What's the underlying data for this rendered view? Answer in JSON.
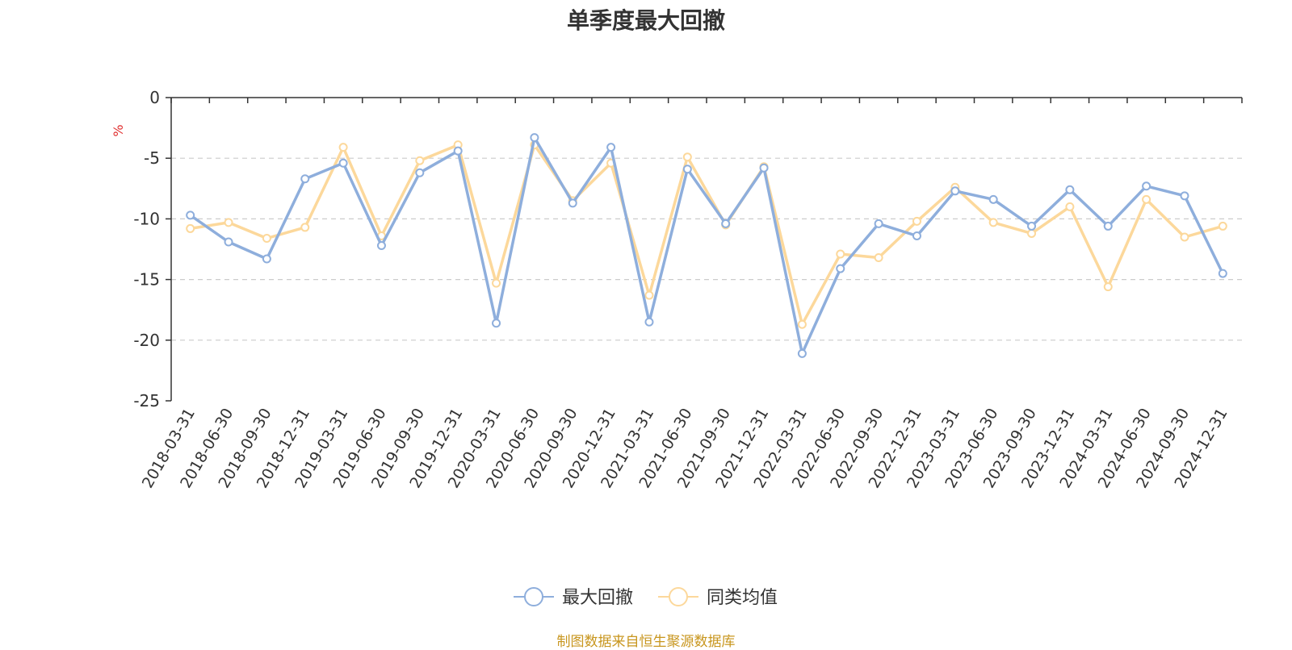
{
  "chart_data": {
    "type": "line",
    "title": "单季度最大回撤",
    "ylabel": "%",
    "ylim": [
      -25,
      0
    ],
    "yticks": [
      0,
      -5,
      -10,
      -15,
      -20,
      -25
    ],
    "grid": true,
    "legend_position": "bottom-center",
    "categories": [
      "2018-03-31",
      "2018-06-30",
      "2018-09-30",
      "2018-12-31",
      "2019-03-31",
      "2019-06-30",
      "2019-09-30",
      "2019-12-31",
      "2020-03-31",
      "2020-06-30",
      "2020-09-30",
      "2020-12-31",
      "2021-03-31",
      "2021-06-30",
      "2021-09-30",
      "2021-12-31",
      "2022-03-31",
      "2022-06-30",
      "2022-09-30",
      "2022-12-31",
      "2023-03-31",
      "2023-06-30",
      "2023-09-30",
      "2023-12-31",
      "2024-03-31",
      "2024-06-30",
      "2024-09-30",
      "2024-12-31"
    ],
    "series": [
      {
        "name": "最大回撤",
        "color": "#8EAEDC",
        "values": [
          -9.7,
          -11.9,
          -13.3,
          -6.7,
          -5.4,
          -12.2,
          -6.2,
          -4.4,
          -18.6,
          -3.3,
          -8.7,
          -4.1,
          -18.5,
          -5.9,
          -10.4,
          -5.8,
          -21.1,
          -14.1,
          -10.4,
          -11.4,
          -7.7,
          -8.4,
          -10.6,
          -7.6,
          -10.6,
          -7.3,
          -8.1,
          -14.5
        ]
      },
      {
        "name": "同类均值",
        "color": "#FCD89B",
        "values": [
          -10.8,
          -10.3,
          -11.6,
          -10.7,
          -4.1,
          -11.4,
          -5.2,
          -3.9,
          -15.3,
          -3.9,
          -8.5,
          -5.4,
          -16.3,
          -4.9,
          -10.5,
          -5.7,
          -18.7,
          -12.9,
          -13.2,
          -10.2,
          -7.4,
          -10.3,
          -11.2,
          -9.0,
          -15.6,
          -8.4,
          -11.5,
          -10.6
        ]
      }
    ]
  },
  "source_note": {
    "text": "制图数据来自恒生聚源数据库",
    "color": "#C8961E"
  },
  "ylabel_color": "#E03030"
}
